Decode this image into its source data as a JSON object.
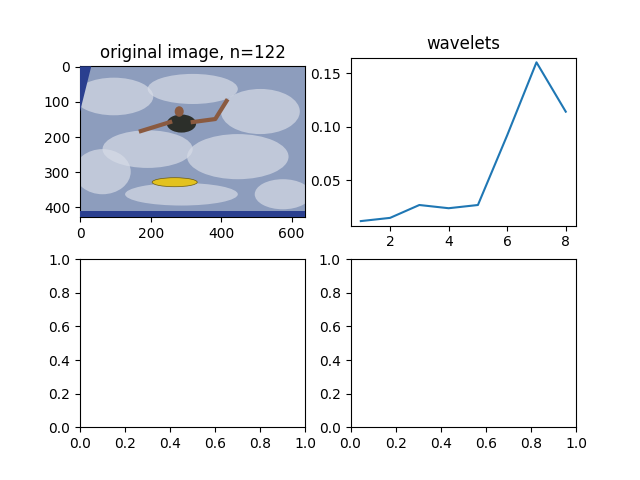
{
  "chart_data": [
    {
      "type": "image",
      "title": "original image, n=122",
      "xlim": [
        -0.5,
        639.5
      ],
      "ylim": [
        426.5,
        -0.5
      ],
      "xticks": [
        0,
        200,
        400,
        600
      ],
      "yticks": [
        0,
        100,
        200,
        300,
        400
      ]
    },
    {
      "type": "line",
      "title": "wavelets",
      "x": [
        1,
        2,
        3,
        4,
        5,
        6,
        7,
        8
      ],
      "values": [
        0.012,
        0.015,
        0.027,
        0.024,
        0.027,
        0.092,
        0.16,
        0.114
      ],
      "color": "#1f77b4",
      "xlim": [
        0.65,
        8.35
      ],
      "ylim": [
        0.0078,
        0.1644
      ],
      "xticks": [
        2,
        4,
        6,
        8
      ],
      "yticks": [
        {
          "value": 0.05,
          "label": "0.05"
        },
        {
          "value": 0.1,
          "label": "0.10"
        },
        {
          "value": 0.15,
          "label": "0.15"
        }
      ]
    },
    {
      "type": "empty",
      "xlim": [
        0,
        1
      ],
      "ylim": [
        0,
        1
      ],
      "xticks": [
        {
          "value": 0,
          "label": "0.0"
        },
        {
          "value": 0.2,
          "label": "0.2"
        },
        {
          "value": 0.4,
          "label": "0.4"
        },
        {
          "value": 0.6,
          "label": "0.6"
        },
        {
          "value": 0.8,
          "label": "0.8"
        },
        {
          "value": 1,
          "label": "1.0"
        }
      ],
      "yticks": [
        {
          "value": 0,
          "label": "0.0"
        },
        {
          "value": 0.2,
          "label": "0.2"
        },
        {
          "value": 0.4,
          "label": "0.4"
        },
        {
          "value": 0.6,
          "label": "0.6"
        },
        {
          "value": 0.8,
          "label": "0.8"
        },
        {
          "value": 1,
          "label": "1.0"
        }
      ]
    },
    {
      "type": "empty",
      "xlim": [
        0,
        1
      ],
      "ylim": [
        0,
        1
      ],
      "xticks": [
        {
          "value": 0,
          "label": "0.0"
        },
        {
          "value": 0.2,
          "label": "0.2"
        },
        {
          "value": 0.4,
          "label": "0.4"
        },
        {
          "value": 0.6,
          "label": "0.6"
        },
        {
          "value": 0.8,
          "label": "0.8"
        },
        {
          "value": 1,
          "label": "1.0"
        }
      ],
      "yticks": [
        {
          "value": 0,
          "label": "0.0"
        },
        {
          "value": 0.2,
          "label": "0.2"
        },
        {
          "value": 0.4,
          "label": "0.4"
        },
        {
          "value": 0.6,
          "label": "0.6"
        },
        {
          "value": 0.8,
          "label": "0.8"
        },
        {
          "value": 1,
          "label": "1.0"
        }
      ]
    }
  ]
}
